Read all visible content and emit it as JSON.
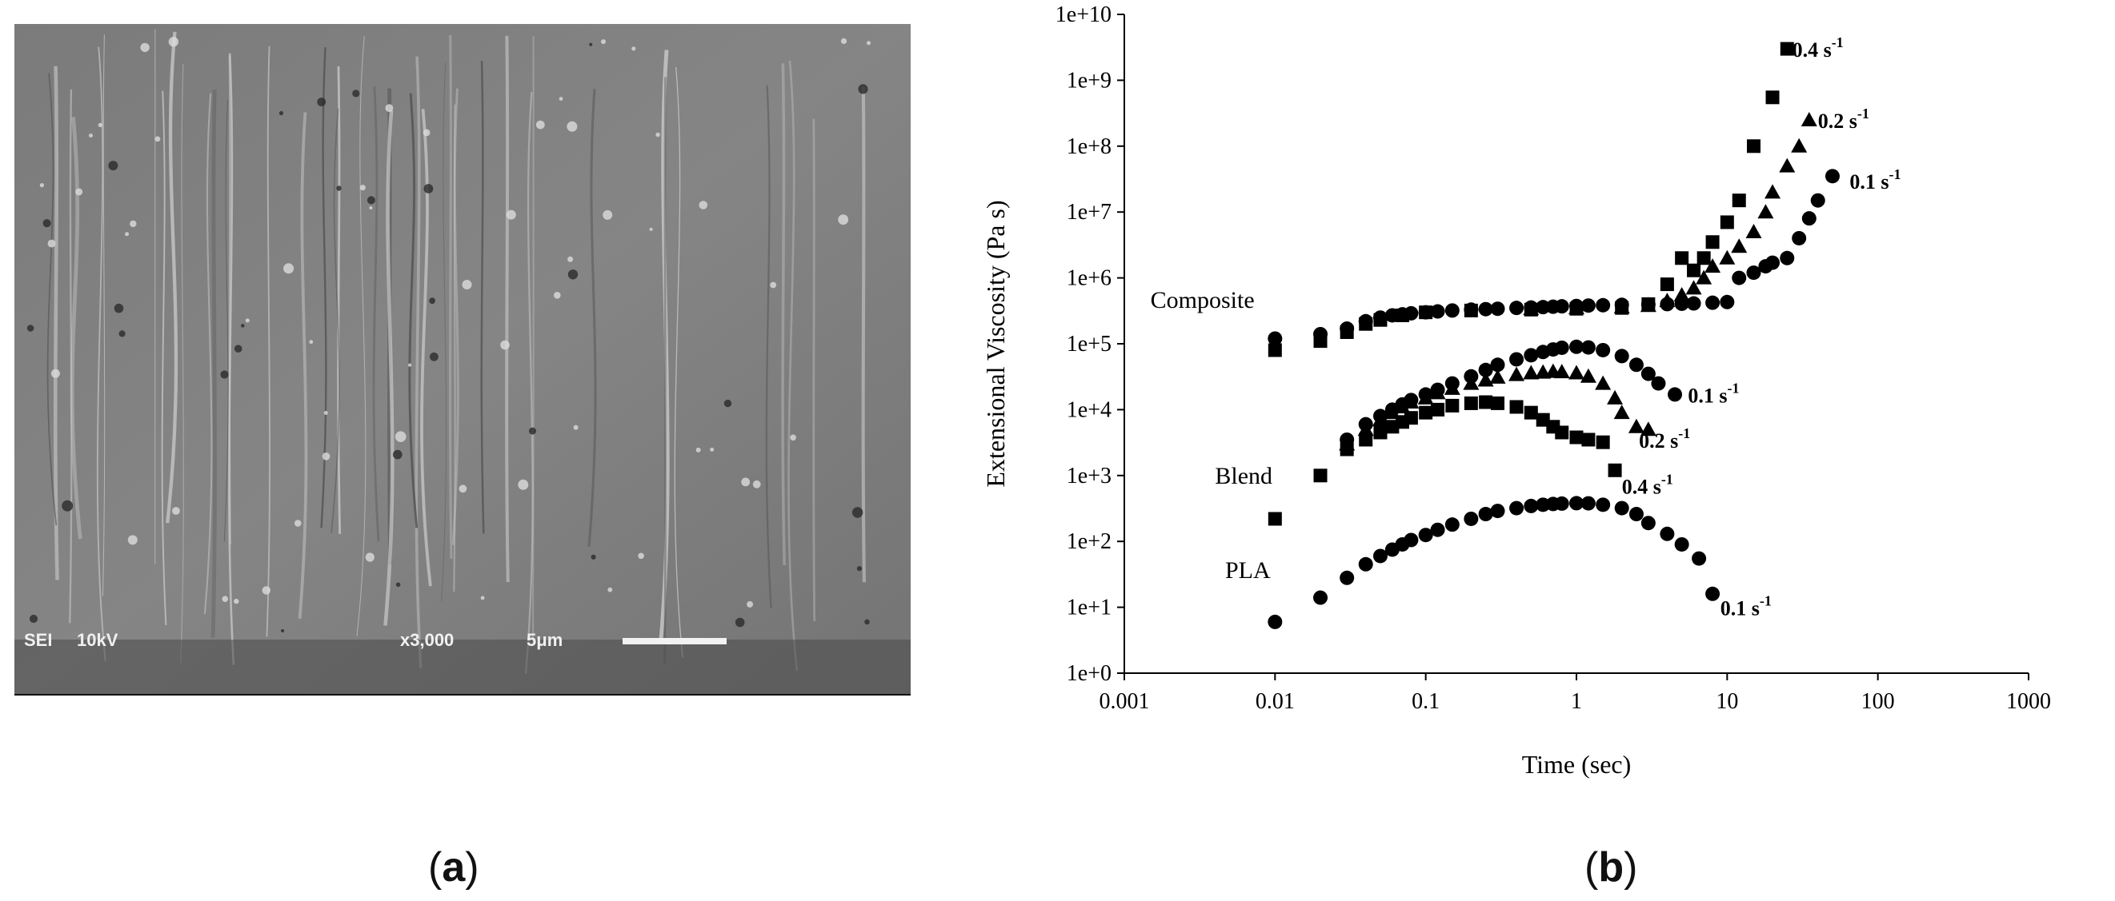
{
  "panel_a": {
    "overlay": {
      "detector": "SEI",
      "voltage": "10kV",
      "magnification": "x3,000",
      "scale_bar": "5μm"
    }
  },
  "captions": {
    "a": "a",
    "b": "b"
  },
  "chart_data": {
    "type": "scatter",
    "title": "",
    "xlabel": "Time (sec)",
    "ylabel": "Extensional Viscosity (Pa s)",
    "xscale": "log",
    "yscale": "log",
    "xlim": [
      0.001,
      1000
    ],
    "ylim": [
      1,
      10000000000
    ],
    "xticks": [
      "0.001",
      "0.01",
      "0.1",
      "1",
      "10",
      "100",
      "1000"
    ],
    "yticks": [
      "1e+0",
      "1e+1",
      "1e+2",
      "1e+3",
      "1e+4",
      "1e+5",
      "1e+6",
      "1e+7",
      "1e+8",
      "1e+9",
      "1e+10"
    ],
    "grid": false,
    "legend": "none",
    "group_labels": [
      "Composite",
      "Blend",
      "PLA"
    ],
    "series": [
      {
        "group": "Composite",
        "rate": "0.4 s-1",
        "marker": "square",
        "x": [
          0.01,
          0.02,
          0.03,
          0.04,
          0.05,
          0.07,
          0.1,
          0.2,
          0.5,
          1,
          2,
          3,
          4,
          5,
          6,
          7,
          8,
          10,
          12,
          15,
          20,
          25
        ],
        "y": [
          80000,
          110000,
          150000,
          200000,
          230000,
          270000,
          300000,
          320000,
          330000,
          340000,
          350000,
          400000,
          800000,
          2000000,
          1300000,
          2000000,
          3500000,
          7000000,
          15000000,
          100000000,
          550000000,
          3000000000
        ]
      },
      {
        "group": "Composite",
        "rate": "0.2 s-1",
        "marker": "triangle",
        "x": [
          0.5,
          1,
          2,
          3,
          4,
          5,
          6,
          7,
          8,
          10,
          12,
          15,
          18,
          20,
          25,
          30,
          35
        ],
        "y": [
          340000,
          350000,
          360000,
          380000,
          450000,
          550000,
          700000,
          1000000,
          1500000,
          2000000,
          3000000,
          5000000,
          10000000,
          20000000,
          50000000,
          100000000,
          250000000
        ]
      },
      {
        "group": "Composite",
        "rate": "0.1 s-1",
        "marker": "circle",
        "x": [
          0.01,
          0.02,
          0.03,
          0.04,
          0.05,
          0.06,
          0.07,
          0.08,
          0.1,
          0.12,
          0.15,
          0.2,
          0.25,
          0.3,
          0.4,
          0.5,
          0.6,
          0.7,
          0.8,
          1,
          1.2,
          1.5,
          2,
          3,
          4,
          5,
          6,
          8,
          10,
          12,
          15,
          18,
          20,
          25,
          30,
          35,
          40,
          50
        ],
        "y": [
          120000,
          140000,
          170000,
          220000,
          250000,
          270000,
          280000,
          290000,
          300000,
          310000,
          320000,
          330000,
          335000,
          340000,
          350000,
          355000,
          360000,
          365000,
          370000,
          375000,
          380000,
          385000,
          390000,
          395000,
          400000,
          405000,
          410000,
          420000,
          430000,
          1000000,
          1200000,
          1500000,
          1700000,
          2000000,
          4000000,
          8000000,
          15000000,
          35000000
        ]
      },
      {
        "group": "Blend",
        "rate": "0.1 s-1",
        "marker": "circle",
        "x": [
          0.03,
          0.04,
          0.05,
          0.06,
          0.07,
          0.08,
          0.1,
          0.12,
          0.15,
          0.2,
          0.25,
          0.3,
          0.4,
          0.5,
          0.6,
          0.7,
          0.8,
          1,
          1.2,
          1.5,
          2,
          2.5,
          3,
          3.5,
          4.5
        ],
        "y": [
          3500,
          6000,
          8000,
          10000,
          12000,
          14000,
          17000,
          20000,
          25000,
          32000,
          40000,
          48000,
          58000,
          67000,
          75000,
          82000,
          87000,
          90000,
          88000,
          80000,
          65000,
          48000,
          35000,
          25000,
          17000
        ]
      },
      {
        "group": "Blend",
        "rate": "0.2 s-1",
        "marker": "triangle",
        "x": [
          0.03,
          0.04,
          0.05,
          0.06,
          0.07,
          0.08,
          0.1,
          0.12,
          0.15,
          0.2,
          0.25,
          0.3,
          0.4,
          0.5,
          0.6,
          0.7,
          0.8,
          1,
          1.2,
          1.5,
          1.8,
          2,
          2.5,
          3
        ],
        "y": [
          3000,
          5000,
          7000,
          9000,
          11000,
          13000,
          15000,
          18000,
          21000,
          25000,
          28000,
          31000,
          34000,
          36000,
          37000,
          38000,
          37500,
          36000,
          32000,
          25000,
          15000,
          9000,
          5500,
          5000
        ]
      },
      {
        "group": "Blend",
        "rate": "0.4 s-1",
        "marker": "square",
        "x": [
          0.01,
          0.02,
          0.03,
          0.04,
          0.05,
          0.06,
          0.07,
          0.08,
          0.1,
          0.12,
          0.15,
          0.2,
          0.25,
          0.3,
          0.4,
          0.5,
          0.6,
          0.7,
          0.8,
          1,
          1.2,
          1.5,
          1.8
        ],
        "y": [
          220,
          1000,
          2500,
          3500,
          4500,
          5500,
          6500,
          7500,
          9000,
          10000,
          11500,
          12500,
          13000,
          12500,
          11000,
          9000,
          7000,
          5500,
          4500,
          3800,
          3500,
          3200,
          1200
        ]
      },
      {
        "group": "PLA",
        "rate": "0.1 s-1",
        "marker": "circle",
        "x": [
          0.01,
          0.02,
          0.03,
          0.04,
          0.05,
          0.06,
          0.07,
          0.08,
          0.1,
          0.12,
          0.15,
          0.2,
          0.25,
          0.3,
          0.4,
          0.5,
          0.6,
          0.7,
          0.8,
          1,
          1.2,
          1.5,
          2,
          2.5,
          3,
          4,
          5,
          6.5,
          8
        ],
        "y": [
          6,
          14,
          28,
          45,
          60,
          75,
          90,
          105,
          125,
          150,
          180,
          220,
          260,
          290,
          320,
          345,
          360,
          370,
          375,
          380,
          378,
          360,
          320,
          260,
          190,
          130,
          90,
          55,
          16
        ]
      }
    ],
    "annotations": [
      {
        "text": "0.4 s",
        "sup": "-1",
        "x": 27,
        "y": 3000000000
      },
      {
        "text": "0.2 s",
        "sup": "-1",
        "x": 40,
        "y": 250000000
      },
      {
        "text": "0.1 s",
        "sup": "-1",
        "x": 65,
        "y": 30000000
      },
      {
        "text": "0.1 s",
        "sup": "-1",
        "x": 5.5,
        "y": 17000
      },
      {
        "text": "0.2 s",
        "sup": "-1",
        "x": 2.6,
        "y": 3500
      },
      {
        "text": "0.4 s",
        "sup": "-1",
        "x": 2.0,
        "y": 700
      },
      {
        "text": "0.1 s",
        "sup": "-1",
        "x": 9,
        "y": 10
      }
    ]
  }
}
